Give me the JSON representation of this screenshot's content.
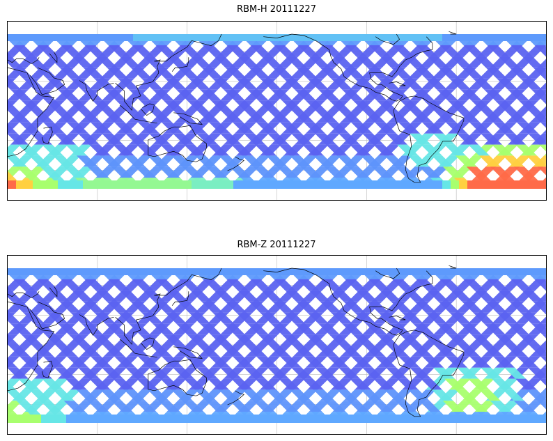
{
  "panels": [
    {
      "title": "RBM-H 20111227",
      "data_band": {
        "lat_top": 60,
        "lat_bottom": -60
      },
      "colormap": "jet",
      "high_value_regions": [
        {
          "name": "south-indian-ocean-southwest",
          "level": "high"
        },
        {
          "name": "south-atlantic-southeast-pacific",
          "level": "very-high"
        }
      ]
    },
    {
      "title": "RBM-Z 20111227",
      "data_band": {
        "lat_top": 60,
        "lat_bottom": -60
      },
      "colormap": "jet",
      "high_value_regions": [
        {
          "name": "south-indian-ocean-southwest",
          "level": "medium"
        },
        {
          "name": "south-atlantic-east",
          "level": "medium"
        }
      ]
    }
  ],
  "colors": {
    "low": "#5b63f0",
    "low_mid": "#5fa8ff",
    "mid": "#66e6e6",
    "mid_high": "#a8ff6e",
    "high": "#ffd040",
    "very_high": "#ff6a48",
    "coastline": "#000000",
    "grid": "#bbbbbb"
  }
}
